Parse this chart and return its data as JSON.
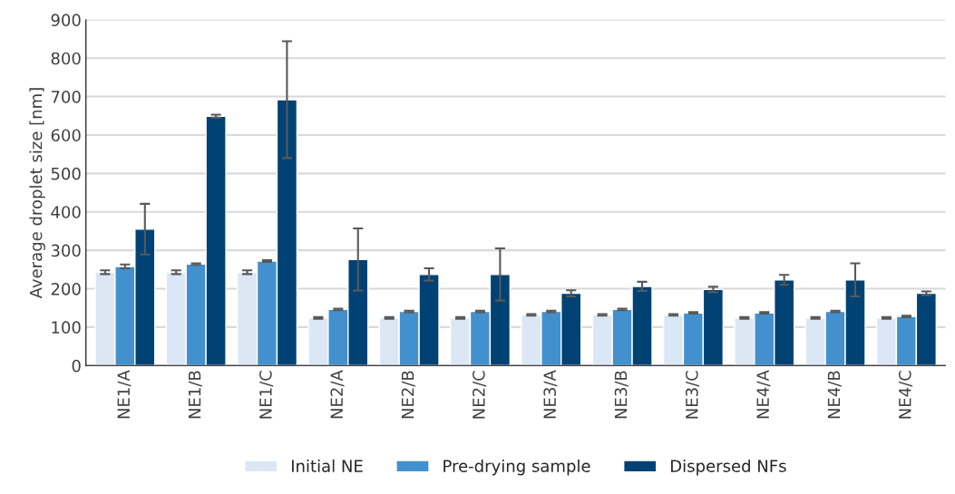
{
  "chart_data": {
    "type": "bar",
    "ylabel": "Average droplet size [nm]",
    "categories": [
      "NE1/A",
      "NE1/B",
      "NE1/C",
      "NE2/A",
      "NE2/B",
      "NE2/C",
      "NE3/A",
      "NE3/B",
      "NE3/C",
      "NE4/A",
      "NE4/B",
      "NE4/C"
    ],
    "series": [
      {
        "name": "Initial NE",
        "color": "#dce7f5",
        "values": [
          243,
          243,
          243,
          124,
          124,
          124,
          132,
          132,
          132,
          124,
          124,
          124
        ],
        "errors": [
          5,
          5,
          5,
          2,
          2,
          2,
          2,
          2,
          2,
          2,
          2,
          2
        ]
      },
      {
        "name": "Pre-drying sample",
        "color": "#4390ce",
        "values": [
          258,
          264,
          272,
          146,
          141,
          141,
          141,
          146,
          137,
          137,
          141,
          128
        ],
        "errors": [
          5,
          2,
          2,
          2,
          2,
          2,
          2,
          2,
          2,
          2,
          2,
          2
        ]
      },
      {
        "name": "Dispersed NFs",
        "color": "#004274",
        "values": [
          355,
          649,
          692,
          276,
          237,
          237,
          188,
          206,
          198,
          223,
          223,
          188
        ],
        "errors": [
          66,
          4,
          152,
          81,
          16,
          68,
          8,
          12,
          7,
          13,
          43,
          5
        ]
      }
    ],
    "ylim": [
      0,
      900
    ],
    "yticks": [
      0,
      100,
      200,
      300,
      400,
      500,
      600,
      700,
      800,
      900
    ],
    "grid": "y",
    "legend": "bottom"
  }
}
